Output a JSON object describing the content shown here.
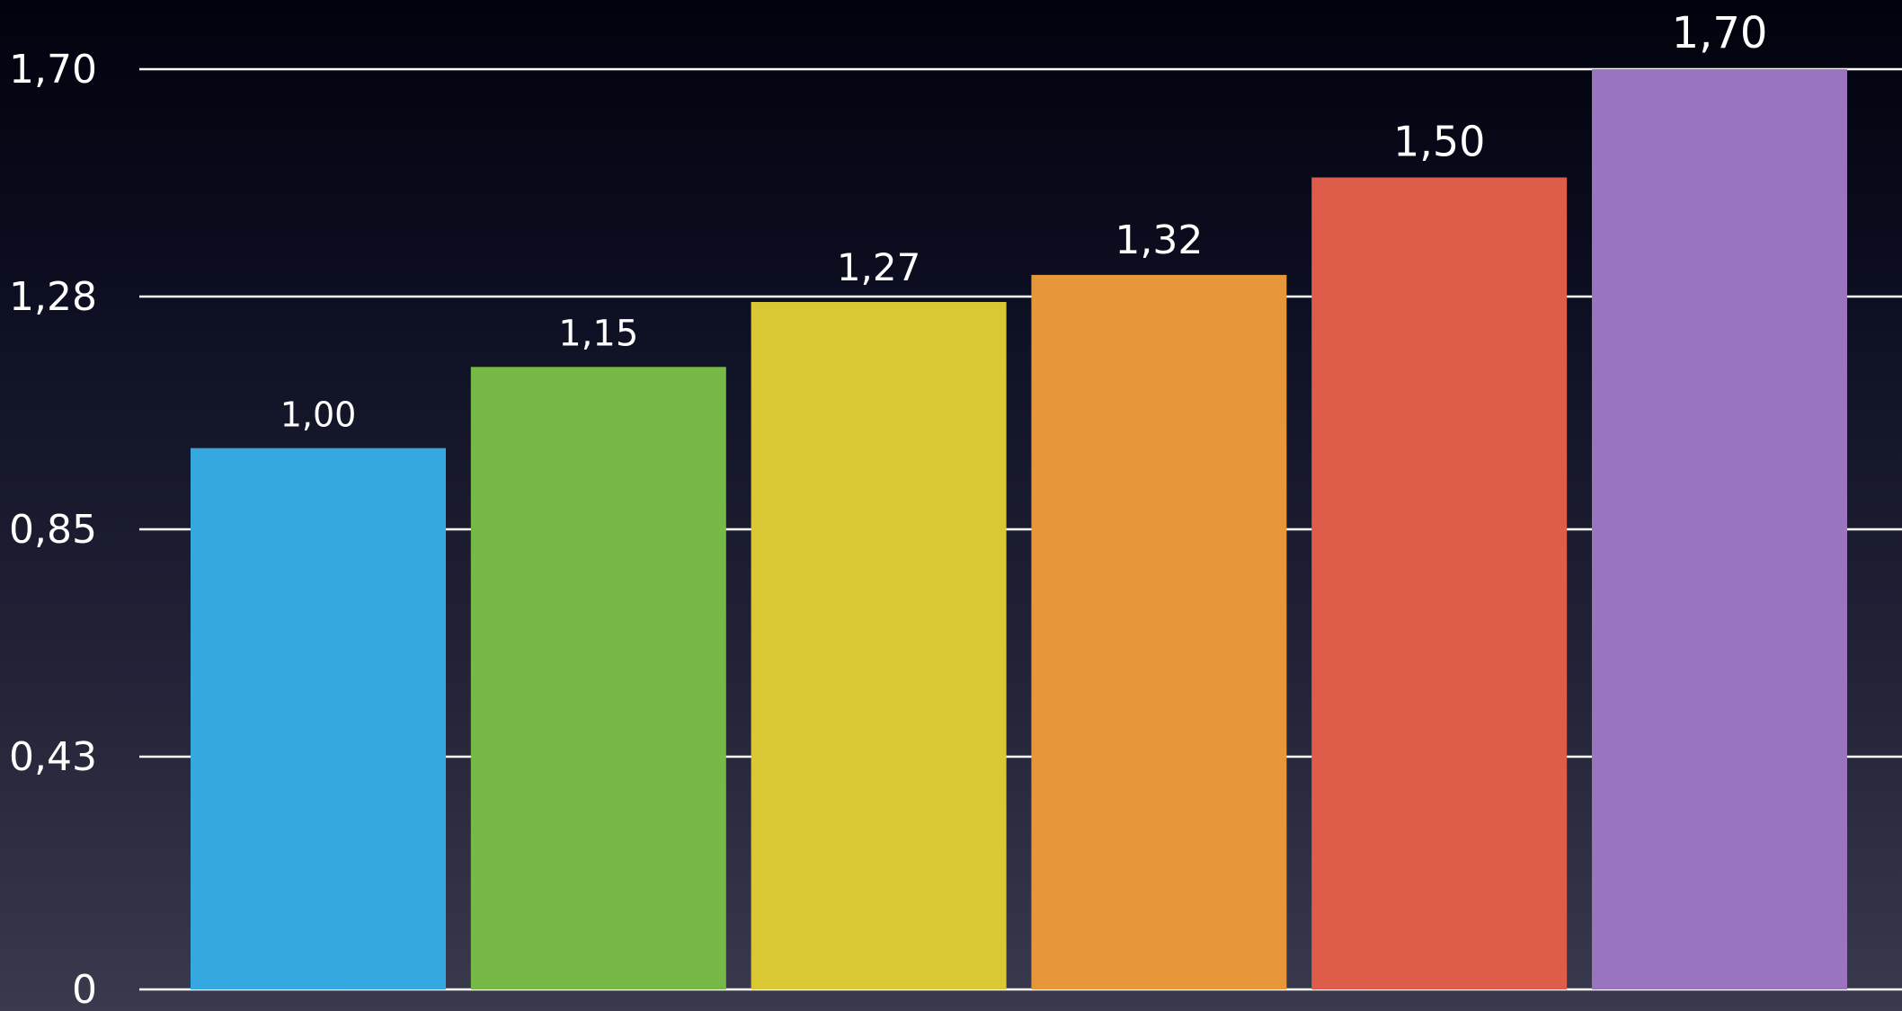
{
  "chart_data": {
    "type": "bar",
    "categories": [
      "",
      "",
      "",
      "",
      "",
      ""
    ],
    "values": [
      1.0,
      1.15,
      1.27,
      1.32,
      1.5,
      1.7
    ],
    "value_labels": [
      "1,00",
      "1,15",
      "1,27",
      "1,32",
      "1,50",
      "1,70"
    ],
    "bar_colors": [
      "#36a8e0",
      "#76b947",
      "#d9c834",
      "#e8963a",
      "#dd5d4a",
      "#9b74c0"
    ],
    "y_ticks": [
      0,
      0.43,
      0.85,
      1.28,
      1.7
    ],
    "y_tick_labels": [
      "0",
      "0,43",
      "0,85",
      "1,28",
      "1,70"
    ],
    "ylim": [
      0,
      1.7
    ],
    "grid": true,
    "title": "",
    "xlabel": "",
    "ylabel": "",
    "background": "dark-gradient"
  }
}
